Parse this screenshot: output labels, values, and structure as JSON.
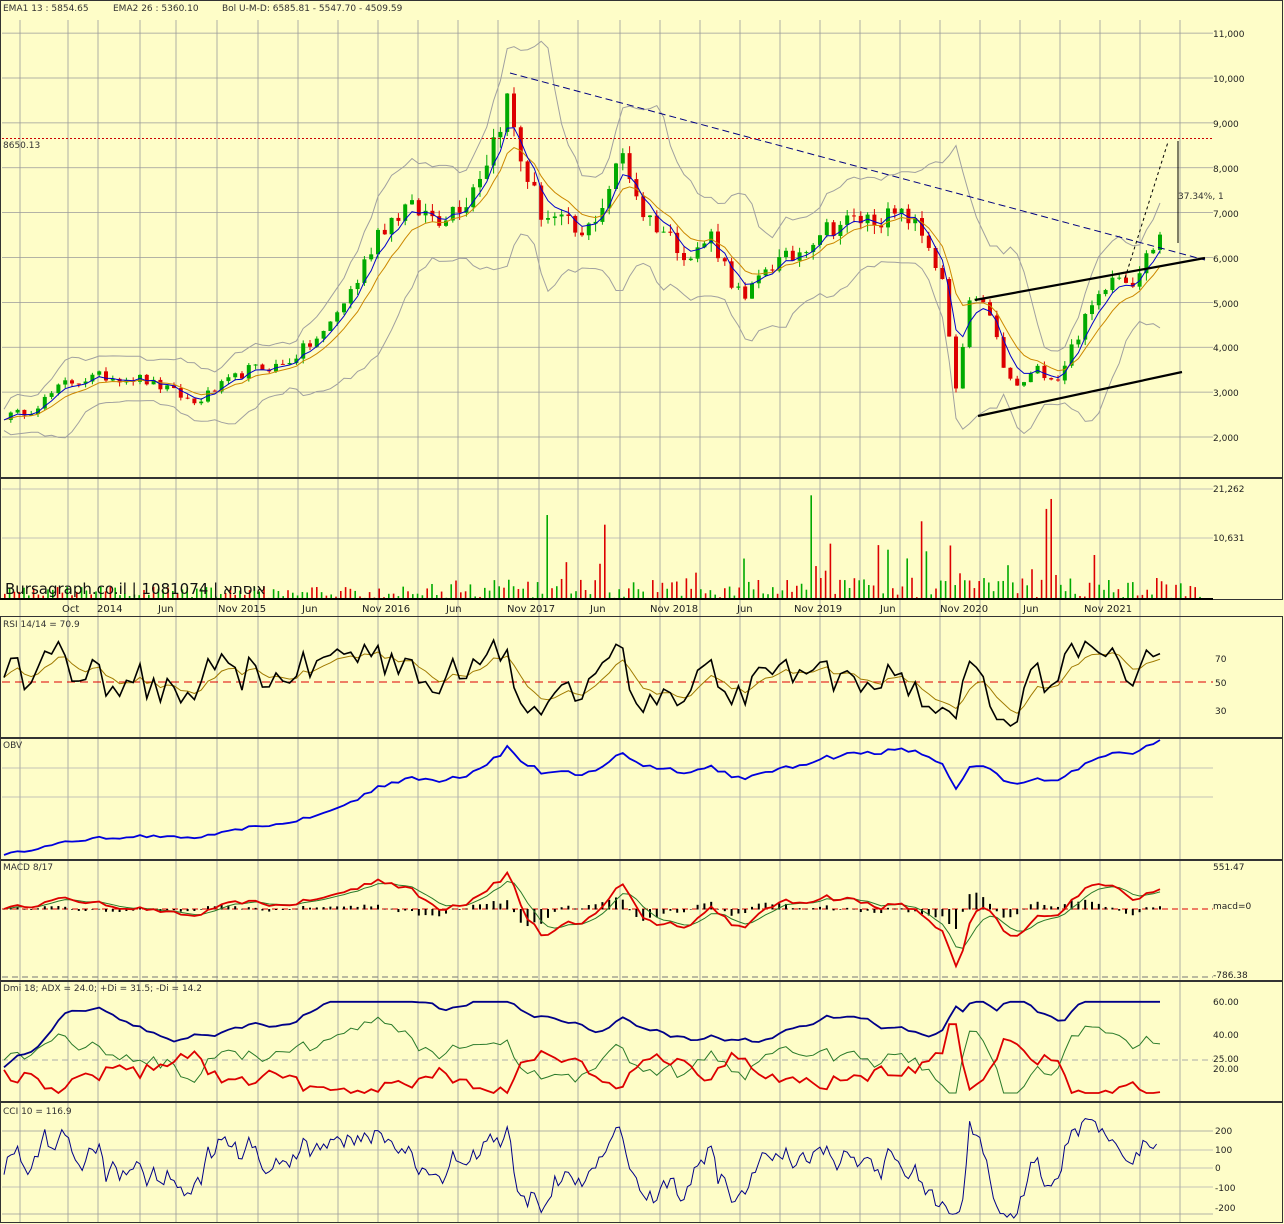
{
  "legend": {
    "ema1": "EMA1 13 : 5854.65",
    "ema2": "EMA2 26 : 5360.10",
    "bol": "Bol U-M-D: 6585.81 - 5547.70 - 4509.59"
  },
  "watermark": "Bursagraph.co.il | 1081074 | איסתא",
  "price_level_label": "8650.13",
  "change_label": "37.34%, 1",
  "colors": {
    "background": "#fefdc8",
    "up": "#00aa00",
    "down": "#dd0000",
    "ema1": "#0000cc",
    "ema2": "#cc8800",
    "bollinger": "#a0a0a0",
    "obv": "#0000dd",
    "rsi": "#000000",
    "trend": "#000080"
  },
  "x_labels": [
    "Oct",
    "2014",
    "Jun",
    "Nov 2015",
    "Jun",
    "Nov 2016",
    "Jun",
    "Nov 2017",
    "Jun",
    "Nov 2018",
    "Jun",
    "Nov 2019",
    "Jun",
    "Nov 2020",
    "Jun",
    "Nov 2021"
  ],
  "panels": {
    "rsi": {
      "title": "RSI 14/14 = 70.9",
      "ticks": [
        "70",
        "50",
        "30"
      ]
    },
    "obv": {
      "title": "OBV"
    },
    "macd": {
      "title": "MACD 8/17",
      "ticks": [
        "551.47",
        "macd=0",
        "-786.38"
      ]
    },
    "dmi": {
      "title": "Dmi 18; ADX = 24.0; +Di = 31.5; -Di = 14.2",
      "ticks": [
        "60.00",
        "40.00",
        "25.00",
        "20.00"
      ]
    },
    "cci": {
      "title": "CCI 10 = 116.9",
      "ticks": [
        "200",
        "100",
        "0",
        "-100",
        "-200"
      ]
    }
  },
  "chart_data": [
    {
      "type": "candlestick",
      "title": "",
      "y_ticks": [
        "11,000",
        "10,000",
        "9,000",
        "8,000",
        "7,000",
        "6,000",
        "5,000",
        "4,000",
        "3,000",
        "2,000"
      ],
      "ylim": [
        1500,
        11300
      ],
      "series": [
        {
          "name": "EMA1 13"
        },
        {
          "name": "EMA2 26"
        },
        {
          "name": "Bol U-M-D"
        }
      ],
      "price_path": [
        [
          0,
          2450
        ],
        [
          4,
          2600
        ],
        [
          9,
          3200
        ],
        [
          14,
          3350
        ],
        [
          20,
          3300
        ],
        [
          25,
          3000
        ],
        [
          28,
          2750
        ],
        [
          31,
          3050
        ],
        [
          36,
          3500
        ],
        [
          41,
          3600
        ],
        [
          47,
          4300
        ],
        [
          52,
          5500
        ],
        [
          55,
          6600
        ],
        [
          59,
          7100
        ],
        [
          64,
          6900
        ],
        [
          68,
          7300
        ],
        [
          71,
          8200
        ],
        [
          74,
          9500
        ],
        [
          76,
          8200
        ],
        [
          79,
          7000
        ],
        [
          83,
          6700
        ],
        [
          85,
          6400
        ],
        [
          88,
          7200
        ],
        [
          91,
          8300
        ],
        [
          94,
          7000
        ],
        [
          97,
          6600
        ],
        [
          101,
          6000
        ],
        [
          104,
          6500
        ],
        [
          107,
          5500
        ],
        [
          109,
          5000
        ],
        [
          112,
          5800
        ],
        [
          116,
          6000
        ],
        [
          120,
          6600
        ],
        [
          124,
          6800
        ],
        [
          129,
          6900
        ],
        [
          133,
          6900
        ],
        [
          136,
          6300
        ],
        [
          138,
          5400
        ],
        [
          140,
          3000
        ],
        [
          142,
          5000
        ],
        [
          145,
          4800
        ],
        [
          147,
          3500
        ],
        [
          149,
          3100
        ],
        [
          152,
          3500
        ],
        [
          155,
          3300
        ],
        [
          157,
          4000
        ],
        [
          160,
          4900
        ],
        [
          163,
          5700
        ],
        [
          166,
          5500
        ],
        [
          168,
          6000
        ],
        [
          170,
          6500
        ]
      ],
      "trendlines": [
        {
          "name": "downtrend",
          "from": [
            -0.5,
            10100
          ],
          "to": [
            200,
            6000
          ]
        },
        {
          "name": "channel-upper",
          "from": [
            -0.4,
            5100
          ],
          "to": [
            200,
            6000
          ]
        },
        {
          "name": "channel-lower",
          "from": [
            -0.4,
            2500
          ],
          "to": [
            200,
            3450
          ]
        }
      ],
      "reference_level": 8650.13,
      "target_change": "37.34%"
    },
    {
      "type": "bar",
      "title": "Volume",
      "y_ticks": [
        "21,262",
        "10,631"
      ],
      "ylim": [
        0,
        21262
      ]
    }
  ]
}
